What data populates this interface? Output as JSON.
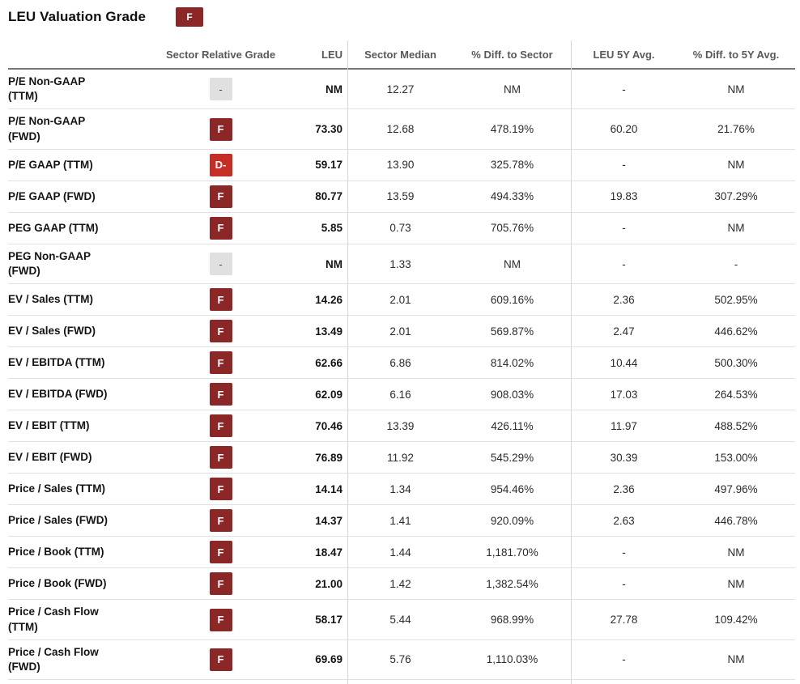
{
  "page": {
    "title": "LEU Valuation Grade",
    "overall_grade": "F"
  },
  "grade_colors": {
    "F": "#8b2827",
    "D-": "#c52d25",
    "-": "#e0e0e0"
  },
  "table": {
    "columns": [
      {
        "key": "metric",
        "label": ""
      },
      {
        "key": "grade",
        "label": "Sector Relative Grade"
      },
      {
        "key": "leu",
        "label": "LEU"
      },
      {
        "key": "sector_median",
        "label": "Sector Median"
      },
      {
        "key": "diff_sector",
        "label": "% Diff. to Sector"
      },
      {
        "key": "leu_5y",
        "label": "LEU 5Y Avg."
      },
      {
        "key": "diff_5y",
        "label": "% Diff. to 5Y Avg."
      }
    ],
    "rows": [
      {
        "metric": "P/E Non-GAAP (TTM)",
        "grade": "-",
        "leu": "NM",
        "sector_median": "12.27",
        "diff_sector": "NM",
        "leu_5y": "-",
        "diff_5y": "NM"
      },
      {
        "metric": "P/E Non-GAAP (FWD)",
        "grade": "F",
        "leu": "73.30",
        "sector_median": "12.68",
        "diff_sector": "478.19%",
        "leu_5y": "60.20",
        "diff_5y": "21.76%"
      },
      {
        "metric": "P/E GAAP (TTM)",
        "grade": "D-",
        "leu": "59.17",
        "sector_median": "13.90",
        "diff_sector": "325.78%",
        "leu_5y": "-",
        "diff_5y": "NM"
      },
      {
        "metric": "P/E GAAP (FWD)",
        "grade": "F",
        "leu": "80.77",
        "sector_median": "13.59",
        "diff_sector": "494.33%",
        "leu_5y": "19.83",
        "diff_5y": "307.29%"
      },
      {
        "metric": "PEG GAAP (TTM)",
        "grade": "F",
        "leu": "5.85",
        "sector_median": "0.73",
        "diff_sector": "705.76%",
        "leu_5y": "-",
        "diff_5y": "NM"
      },
      {
        "metric": "PEG Non-GAAP (FWD)",
        "grade": "-",
        "leu": "NM",
        "sector_median": "1.33",
        "diff_sector": "NM",
        "leu_5y": "-",
        "diff_5y": "-"
      },
      {
        "metric": "EV / Sales (TTM)",
        "grade": "F",
        "leu": "14.26",
        "sector_median": "2.01",
        "diff_sector": "609.16%",
        "leu_5y": "2.36",
        "diff_5y": "502.95%"
      },
      {
        "metric": "EV / Sales (FWD)",
        "grade": "F",
        "leu": "13.49",
        "sector_median": "2.01",
        "diff_sector": "569.87%",
        "leu_5y": "2.47",
        "diff_5y": "446.62%"
      },
      {
        "metric": "EV / EBITDA (TTM)",
        "grade": "F",
        "leu": "62.66",
        "sector_median": "6.86",
        "diff_sector": "814.02%",
        "leu_5y": "10.44",
        "diff_5y": "500.30%"
      },
      {
        "metric": "EV / EBITDA (FWD)",
        "grade": "F",
        "leu": "62.09",
        "sector_median": "6.16",
        "diff_sector": "908.03%",
        "leu_5y": "17.03",
        "diff_5y": "264.53%"
      },
      {
        "metric": "EV / EBIT (TTM)",
        "grade": "F",
        "leu": "70.46",
        "sector_median": "13.39",
        "diff_sector": "426.11%",
        "leu_5y": "11.97",
        "diff_5y": "488.52%"
      },
      {
        "metric": "EV / EBIT (FWD)",
        "grade": "F",
        "leu": "76.89",
        "sector_median": "11.92",
        "diff_sector": "545.29%",
        "leu_5y": "30.39",
        "diff_5y": "153.00%"
      },
      {
        "metric": "Price / Sales (TTM)",
        "grade": "F",
        "leu": "14.14",
        "sector_median": "1.34",
        "diff_sector": "954.46%",
        "leu_5y": "2.36",
        "diff_5y": "497.96%"
      },
      {
        "metric": "Price / Sales (FWD)",
        "grade": "F",
        "leu": "14.37",
        "sector_median": "1.41",
        "diff_sector": "920.09%",
        "leu_5y": "2.63",
        "diff_5y": "446.78%"
      },
      {
        "metric": "Price / Book (TTM)",
        "grade": "F",
        "leu": "18.47",
        "sector_median": "1.44",
        "diff_sector": "1,181.70%",
        "leu_5y": "-",
        "diff_5y": "NM"
      },
      {
        "metric": "Price / Book (FWD)",
        "grade": "F",
        "leu": "21.00",
        "sector_median": "1.42",
        "diff_sector": "1,382.54%",
        "leu_5y": "-",
        "diff_5y": "NM"
      },
      {
        "metric": "Price / Cash Flow (TTM)",
        "grade": "F",
        "leu": "58.17",
        "sector_median": "5.44",
        "diff_sector": "968.99%",
        "leu_5y": "27.78",
        "diff_5y": "109.42%"
      },
      {
        "metric": "Price / Cash Flow (FWD)",
        "grade": "F",
        "leu": "69.69",
        "sector_median": "5.76",
        "diff_sector": "1,110.03%",
        "leu_5y": "-",
        "diff_5y": "NM"
      }
    ]
  }
}
